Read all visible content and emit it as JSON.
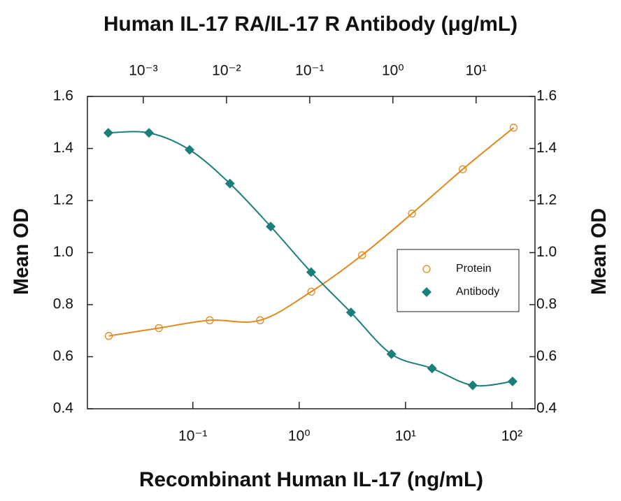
{
  "chart_data": {
    "type": "scatter",
    "title": "Human IL-17 RA/IL-17 R Antibody (μg/mL)",
    "x_label": "Recombinant Human IL-17 (ng/mL)",
    "y_label": "Mean OD",
    "y2_label": "Mean OD",
    "xscale": "log",
    "x2scale": "log",
    "xlim": [
      0.0102,
      165
    ],
    "xticks": [
      {
        "value": 0.1,
        "label": "10⁻¹"
      },
      {
        "value": 1,
        "label": "10⁰"
      },
      {
        "value": 10,
        "label": "10¹"
      },
      {
        "value": 100,
        "label": "10²"
      }
    ],
    "x2lim": [
      0.000213,
      51
    ],
    "x2ticks": [
      {
        "value": 0.001,
        "label": "10⁻³"
      },
      {
        "value": 0.01,
        "label": "10⁻²"
      },
      {
        "value": 0.1,
        "label": "10⁻¹"
      },
      {
        "value": 1,
        "label": "10⁰"
      },
      {
        "value": 10,
        "label": "10¹"
      }
    ],
    "ylim": [
      0.4,
      1.6
    ],
    "yticks": [
      0.4,
      0.6,
      0.8,
      {
        "value": 1,
        "label": "1.0"
      },
      1.2,
      1.4,
      1.6
    ],
    "y2lim": [
      0.4,
      1.6
    ],
    "y2ticks": [
      0.4,
      0.6,
      0.8,
      {
        "value": 1,
        "label": "1.0"
      },
      1.2,
      1.4,
      1.6
    ],
    "legend": "right",
    "series": [
      {
        "name": "Protein",
        "color": "#e08a1e",
        "marker": "circle",
        "xaxis": "x",
        "x": [
          0.0162,
          0.048,
          0.144,
          0.43,
          1.3,
          3.9,
          11.5,
          34.5,
          104
        ],
        "values": [
          0.68,
          0.71,
          0.74,
          0.74,
          0.85,
          0.99,
          1.15,
          1.32,
          1.48
        ]
      },
      {
        "name": "Antibody",
        "color": "#1a7f7a",
        "marker": "diamond",
        "xaxis": "x2",
        "x": [
          0.00038,
          0.00117,
          0.0036,
          0.011,
          0.034,
          0.104,
          0.313,
          0.96,
          2.95,
          9.1,
          27.4
        ],
        "values": [
          1.46,
          1.46,
          1.395,
          1.265,
          1.1,
          0.925,
          0.77,
          0.61,
          0.555,
          0.49,
          0.505
        ]
      }
    ]
  }
}
